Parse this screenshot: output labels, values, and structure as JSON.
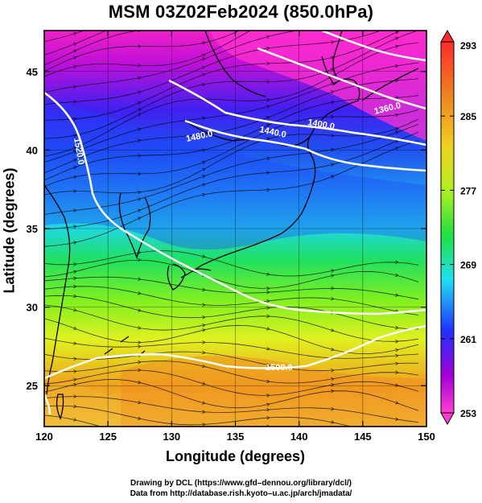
{
  "title": "MSM 03Z02Feb2024 (850.0hPa)",
  "map": {
    "xlabel": "Longitude (degrees)",
    "ylabel": "Latitude  (degrees)",
    "lon_range": [
      120,
      150
    ],
    "lat_range": [
      22.4,
      47.6
    ],
    "lon_ticks": [
      "120",
      "125",
      "130",
      "135",
      "140",
      "145",
      "150"
    ],
    "lat_ticks": [
      "25",
      "30",
      "35",
      "40",
      "45"
    ],
    "grid": true
  },
  "colorbar": {
    "min": 253,
    "max": 293,
    "tick_labels": [
      "293",
      "285",
      "277",
      "269",
      "261",
      "253"
    ],
    "colors": [
      "#ff3fd0",
      "#a400d8",
      "#2030ff",
      "#20e0f0",
      "#20e040",
      "#f0f020",
      "#f08020",
      "#ff2a2a"
    ]
  },
  "contours": {
    "labels": [
      "1520.0",
      "1480.0",
      "1440.0",
      "1400.0",
      "1360.0",
      "1500.0"
    ]
  },
  "credits": {
    "line1": "Drawing by DCL (https://www.gfd–dennou.org/library/dcl/)",
    "line2": "Data from http://database.rish.kyoto–u.ac.jp/arch/jmadata/"
  }
}
